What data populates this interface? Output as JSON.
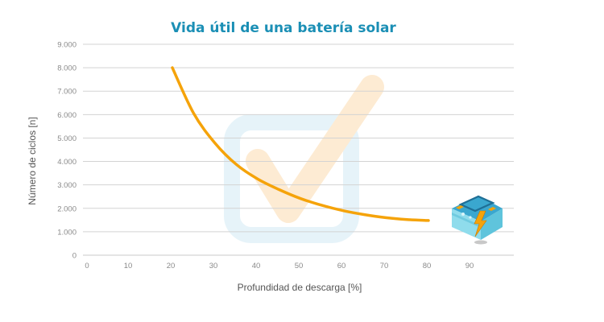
{
  "chart_data": {
    "type": "line",
    "title": "Vida útil de una batería solar",
    "xlabel": "Profundidad de descarga [%]",
    "ylabel": "Número de ciclos [n]",
    "xlim": [
      0,
      100
    ],
    "ylim": [
      0,
      9000
    ],
    "x_ticks": [
      "0",
      "10",
      "20",
      "30",
      "40",
      "50",
      "60",
      "70",
      "80",
      "90"
    ],
    "y_ticks": [
      "0",
      "1.000",
      "2.000",
      "3.000",
      "4.000",
      "5.000",
      "6.000",
      "7.000",
      "8.000",
      "9.000"
    ],
    "grid": "horizontal",
    "series": [
      {
        "color": "#f5a30a",
        "x": [
          20,
          25,
          30,
          35,
          40,
          45,
          50,
          55,
          60,
          65,
          70,
          75,
          80
        ],
        "y": [
          8000,
          6050,
          4780,
          3870,
          3250,
          2800,
          2420,
          2130,
          1900,
          1730,
          1600,
          1520,
          1480
        ]
      }
    ]
  },
  "colors": {
    "title": "#1b8fb5",
    "grid": "#d3d3d3",
    "line": "#f5a30a",
    "watermark_box": "#e6f3f9",
    "watermark_check": "#fdebd3"
  },
  "icons": {
    "watermark": "checkbox-check-icon",
    "battery": "battery-icon"
  }
}
